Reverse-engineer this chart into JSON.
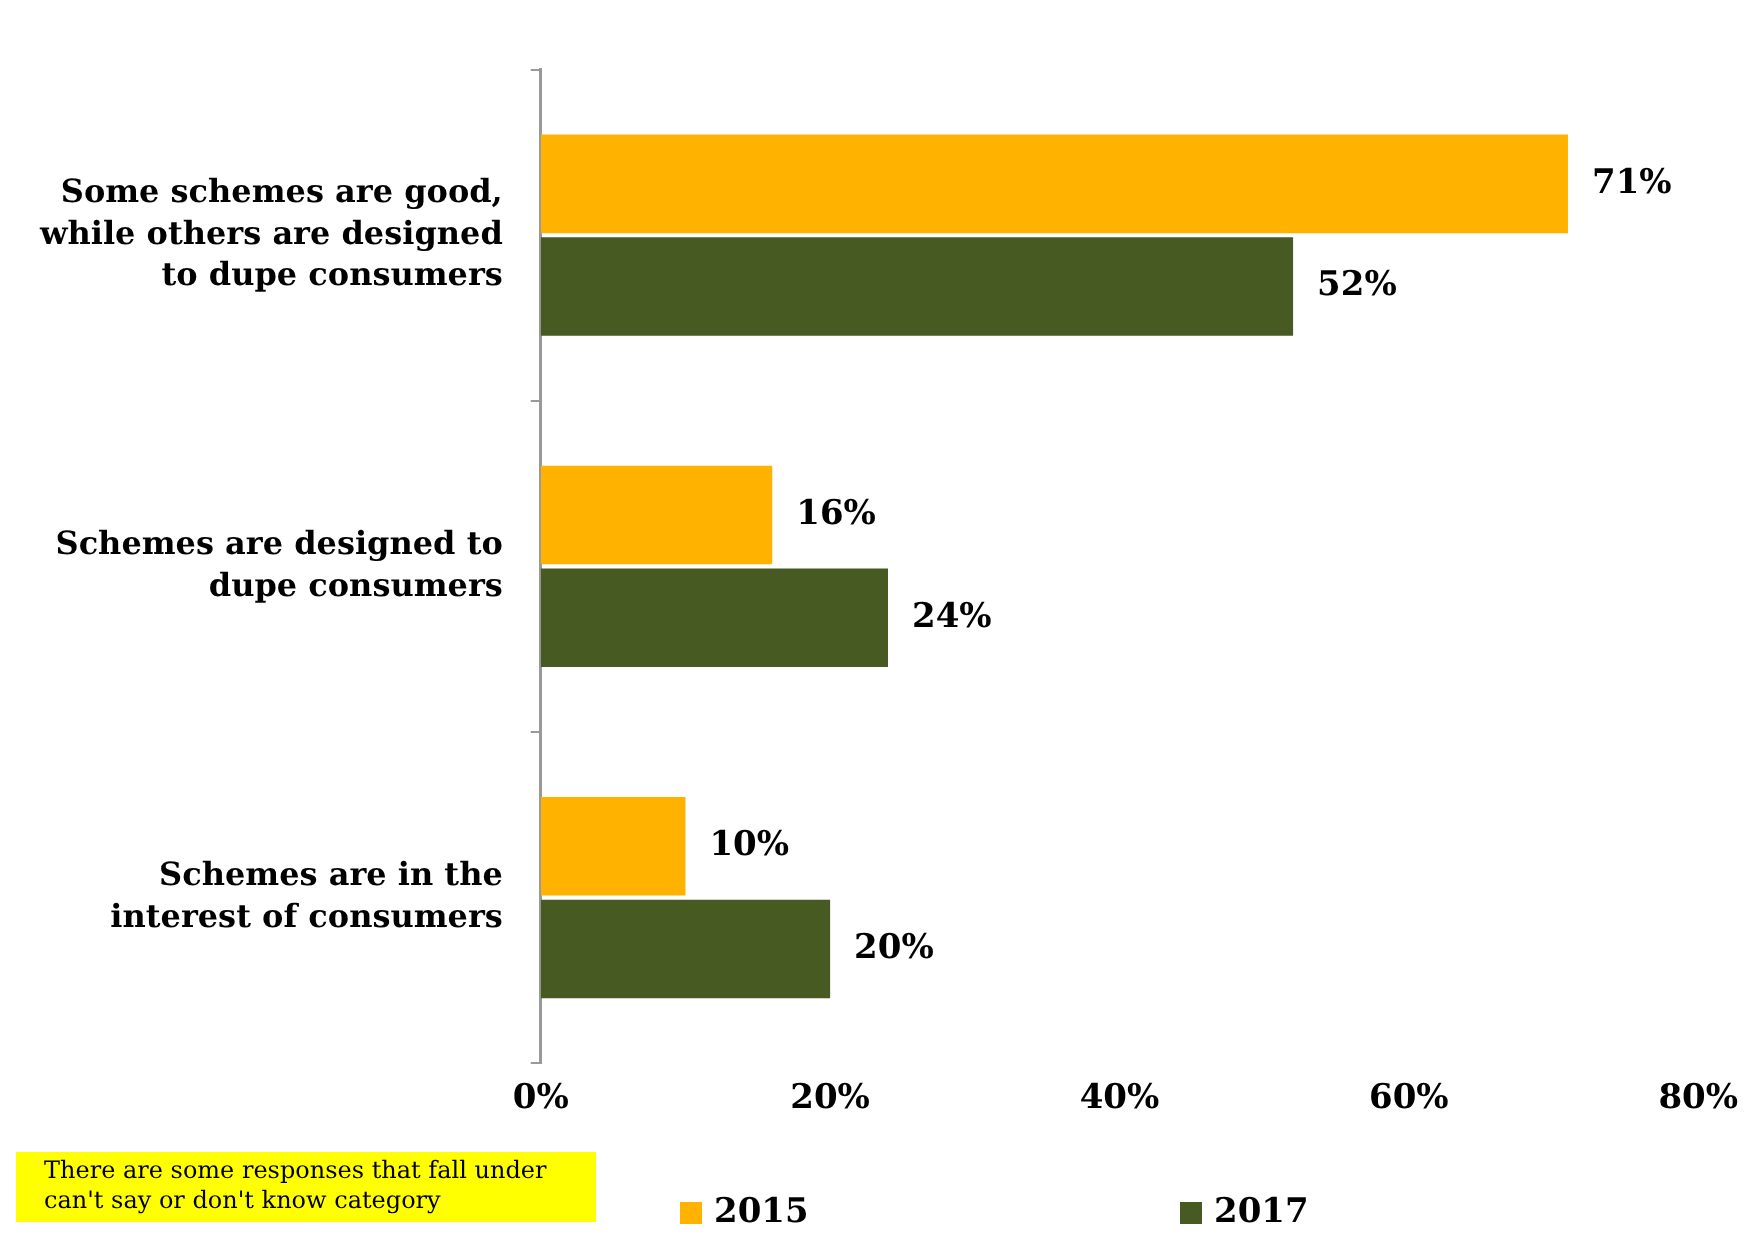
{
  "chart_data": {
    "type": "bar",
    "orientation": "horizontal",
    "categories": [
      "Some schemes are good, while others are designed to dupe consumers",
      "Schemes are designed to dupe consumers",
      "Schemes are in the interest of consumers"
    ],
    "series": [
      {
        "name": "2015",
        "color": "#ffb300",
        "values": [
          71,
          16,
          10
        ],
        "value_labels": [
          "71%",
          "16%",
          "10%"
        ]
      },
      {
        "name": "2017",
        "color": "#475a22",
        "values": [
          52,
          24,
          20
        ],
        "value_labels": [
          "52%",
          "24%",
          "20%"
        ]
      }
    ],
    "xlim": [
      0,
      80
    ],
    "xticks": [
      {
        "value": 0,
        "label": "0%"
      },
      {
        "value": 20,
        "label": "20%"
      },
      {
        "value": 40,
        "label": "40%"
      },
      {
        "value": 60,
        "label": "60%"
      },
      {
        "value": 80,
        "label": "80%"
      }
    ],
    "grid": false,
    "legend": "bottom",
    "annotations": [
      "There are some responses that fall under can't say or don't know category"
    ]
  }
}
